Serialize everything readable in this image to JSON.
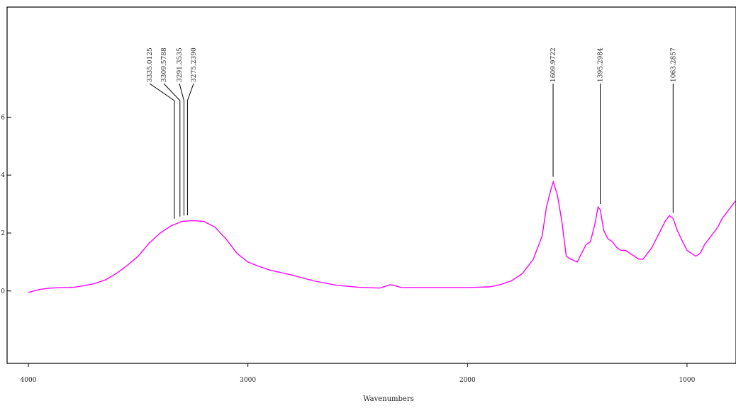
{
  "chart_data": {
    "type": "line",
    "xlabel": "Wavenumbers",
    "ylabel": "",
    "title": "",
    "x_reversed": true,
    "xlim": [
      4000,
      680
    ],
    "ylim": [
      -0.0025,
      0.0098
    ],
    "x_ticks": [
      4000,
      3000,
      2000,
      1000
    ],
    "x_tick_labels": [
      "4000",
      "3000",
      "2000",
      "1000"
    ],
    "y_ticks": [
      0.0,
      0.002,
      0.004,
      0.006
    ],
    "y_tick_labels": [
      "0",
      "2",
      "4",
      "6"
    ],
    "series_color": "#ff00ff",
    "series": [
      {
        "x": [
          4000,
          3950,
          3900,
          3850,
          3800,
          3750,
          3700,
          3650,
          3600,
          3550,
          3500,
          3450,
          3400,
          3350,
          3300,
          3250,
          3200,
          3150,
          3100,
          3050,
          3000,
          2950,
          2900,
          2800,
          2700,
          2600,
          2500,
          2400,
          2350,
          2300,
          2200,
          2100,
          2000,
          1900,
          1850,
          1800,
          1750,
          1700,
          1660,
          1640,
          1620,
          1609,
          1590,
          1570,
          1550,
          1530,
          1500,
          1480,
          1460,
          1440,
          1420,
          1405,
          1395,
          1380,
          1360,
          1340,
          1320,
          1300,
          1280,
          1260,
          1240,
          1220,
          1200,
          1180,
          1160,
          1140,
          1120,
          1100,
          1080,
          1063,
          1045,
          1020,
          1000,
          980,
          960,
          940,
          920,
          900,
          880,
          860,
          840,
          820,
          800,
          780,
          760,
          740,
          720,
          700,
          680
        ],
        "y": [
          -5e-05,
          5e-05,
          0.0001,
          0.00012,
          0.00012,
          0.00018,
          0.00025,
          0.00038,
          0.0006,
          0.00088,
          0.0012,
          0.00165,
          0.002,
          0.00225,
          0.0024,
          0.00243,
          0.0024,
          0.0022,
          0.0018,
          0.0013,
          0.001,
          0.00085,
          0.00072,
          0.00055,
          0.00035,
          0.0002,
          0.00013,
          0.0001,
          0.00022,
          0.00012,
          0.00012,
          0.00012,
          0.00012,
          0.00014,
          0.00022,
          0.00035,
          0.0006,
          0.0011,
          0.0019,
          0.0029,
          0.0035,
          0.00377,
          0.0033,
          0.0024,
          0.0012,
          0.0011,
          0.001,
          0.0013,
          0.0016,
          0.0017,
          0.0023,
          0.0029,
          0.0028,
          0.0021,
          0.0018,
          0.0017,
          0.0015,
          0.0014,
          0.0014,
          0.0013,
          0.0012,
          0.0011,
          0.0011,
          0.0013,
          0.0015,
          0.0018,
          0.0021,
          0.0024,
          0.0026,
          0.0025,
          0.0021,
          0.0017,
          0.0014,
          0.0013,
          0.0012,
          0.0013,
          0.0016,
          0.0018,
          0.002,
          0.0022,
          0.0025,
          0.0027,
          0.0029,
          0.0031,
          0.0033,
          0.0034,
          0.0035,
          0.0037,
          0.004
        ]
      }
    ],
    "peaks": [
      {
        "x": 3335.0125,
        "label": "3335.0125",
        "label_x": 3335.0125
      },
      {
        "x": 3309.5788,
        "label": "3309.5788",
        "label_x": 3309.5788
      },
      {
        "x": 3291.3535,
        "label": "3291.3535",
        "label_x": 3291.3535
      },
      {
        "x": 3275.239,
        "label": "3275.2390",
        "label_x": 3275.239
      },
      {
        "x": 1609.9722,
        "label": "1609.9722",
        "label_x": 1609.9722
      },
      {
        "x": 1395.2984,
        "label": "1395.2984",
        "label_x": 1395.2984
      },
      {
        "x": 1063.2857,
        "label": "1063.2857",
        "label_x": 1063.2857
      }
    ]
  }
}
